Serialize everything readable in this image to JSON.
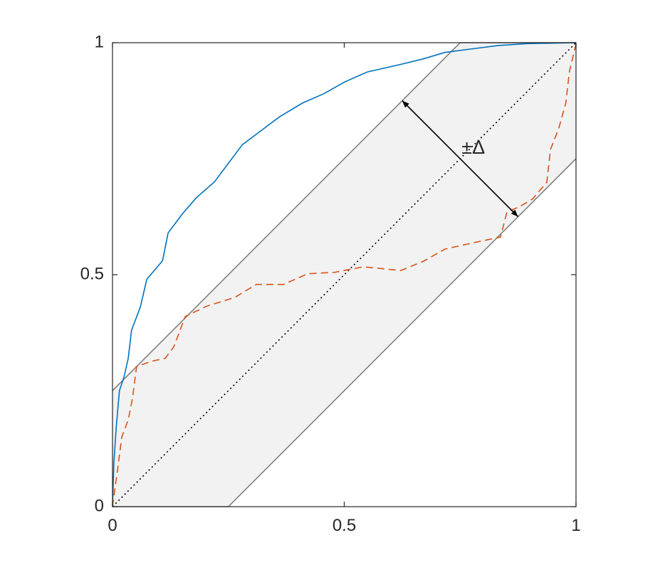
{
  "chart_data": {
    "type": "line",
    "xlim": [
      0,
      1
    ],
    "ylim": [
      0,
      1
    ],
    "xticks": [
      0,
      0.5,
      1
    ],
    "yticks": [
      0,
      0.5,
      1
    ],
    "band_fill": "#f2f2f2",
    "series": [
      {
        "color": "#808080",
        "style": "solid",
        "band": "upper",
        "x": [
          0,
          0.75,
          1
        ],
        "values": [
          0.25,
          1,
          1
        ]
      },
      {
        "color": "#808080",
        "style": "solid",
        "band": "lower",
        "x": [
          0,
          0.25,
          1
        ],
        "values": [
          0,
          0,
          0.75
        ]
      },
      {
        "color": "#000000",
        "style": "dotted",
        "x": [
          0,
          1
        ],
        "values": [
          0,
          1
        ]
      },
      {
        "color": "#0072bd",
        "style": "solid",
        "x": [
          0,
          0.003,
          0.008,
          0.015,
          0.025,
          0.034,
          0.041,
          0.06,
          0.074,
          0.108,
          0.12,
          0.15,
          0.18,
          0.22,
          0.28,
          0.32,
          0.36,
          0.41,
          0.456,
          0.5,
          0.55,
          0.625,
          0.67,
          0.717,
          0.77,
          0.833,
          0.894,
          1
        ],
        "values": [
          0,
          0.095,
          0.17,
          0.25,
          0.28,
          0.32,
          0.38,
          0.43,
          0.49,
          0.53,
          0.59,
          0.63,
          0.665,
          0.7,
          0.78,
          0.81,
          0.84,
          0.87,
          0.89,
          0.915,
          0.937,
          0.954,
          0.965,
          0.979,
          0.986,
          0.994,
          0.998,
          1
        ]
      },
      {
        "color": "#d95319",
        "style": "dashed",
        "x": [
          0,
          0.011,
          0.02,
          0.034,
          0.043,
          0.052,
          0.083,
          0.114,
          0.132,
          0.157,
          0.203,
          0.264,
          0.31,
          0.369,
          0.421,
          0.479,
          0.541,
          0.622,
          0.671,
          0.717,
          0.779,
          0.837,
          0.851,
          0.879,
          0.906,
          0.937,
          0.945,
          0.963,
          0.978,
          0.986,
          1
        ],
        "values": [
          0,
          0.08,
          0.15,
          0.187,
          0.233,
          0.302,
          0.313,
          0.32,
          0.344,
          0.41,
          0.432,
          0.451,
          0.479,
          0.479,
          0.502,
          0.505,
          0.517,
          0.509,
          0.529,
          0.555,
          0.569,
          0.581,
          0.635,
          0.647,
          0.663,
          0.699,
          0.77,
          0.816,
          0.87,
          0.939,
          0.997
        ]
      }
    ],
    "annotation": {
      "text": "±Δ",
      "x": [
        0.625,
        0.875
      ],
      "y": [
        0.875,
        0.625
      ]
    }
  }
}
